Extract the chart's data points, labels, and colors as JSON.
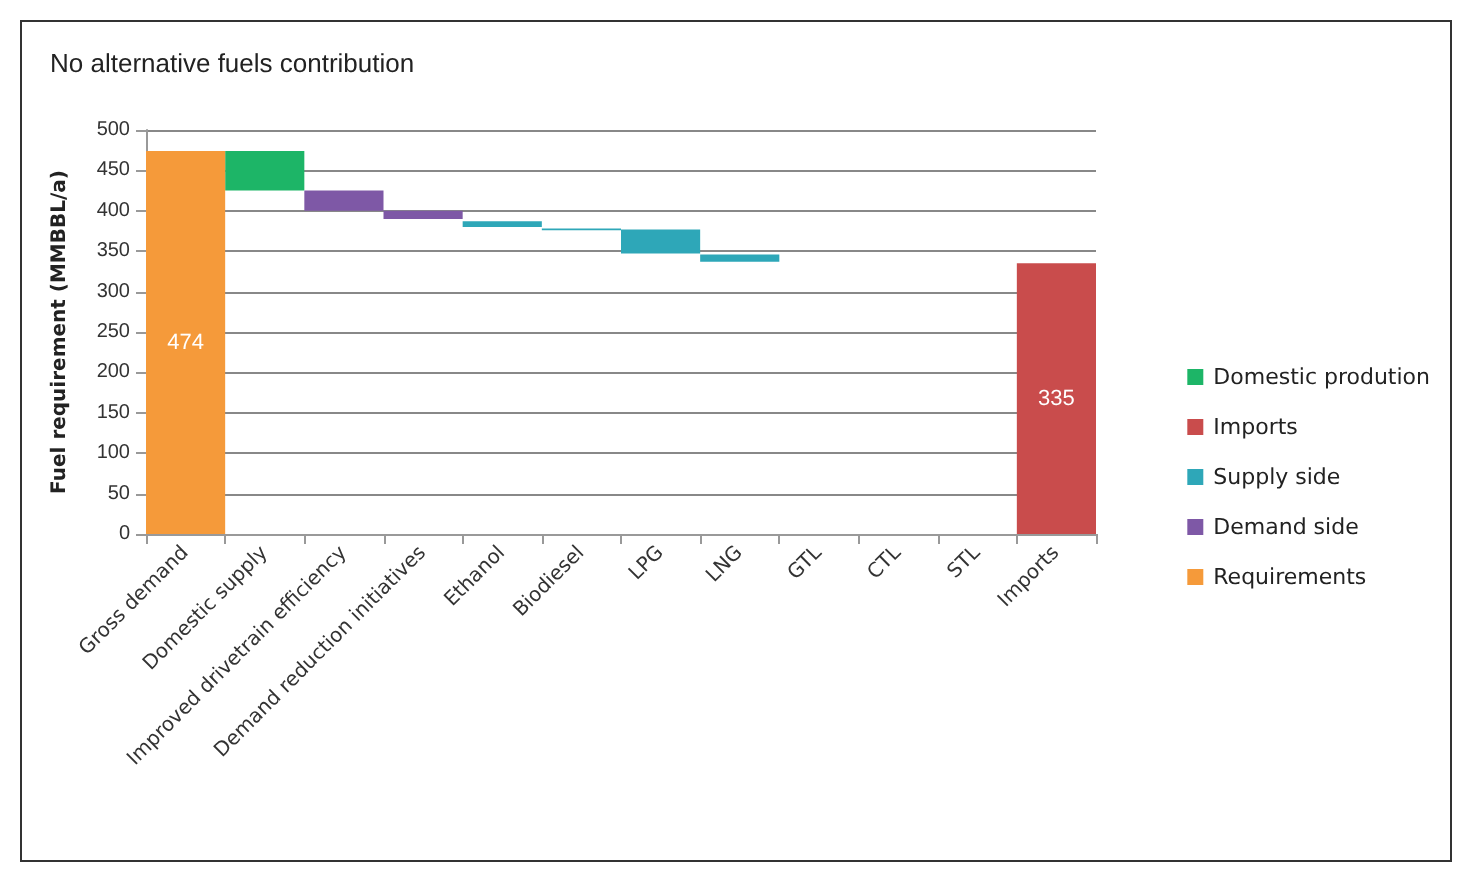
{
  "chart_data": {
    "type": "bar",
    "title": "No alternative fuels contribution",
    "ylabel": "Fuel requirement (MMBBL/a)",
    "categories": [
      "Gross demand",
      "Domestic supply",
      "Improved drivetrain efficiency",
      "Demand reduction initiatives",
      "Ethanol",
      "Biodiesel",
      "LPG",
      "LNG",
      "GTL",
      "CTL",
      "STL",
      "Imports"
    ],
    "series": [
      {
        "name": "Domestic prodution",
        "color": "#1db567",
        "values": [
          null,
          49,
          null,
          null,
          null,
          null,
          null,
          null,
          null,
          null,
          null,
          null
        ],
        "base": [
          null,
          425,
          null,
          null,
          null,
          null,
          null,
          null,
          null,
          null,
          null,
          null
        ]
      },
      {
        "name": "Imports",
        "color": "#c94c4c",
        "values": [
          null,
          null,
          null,
          null,
          null,
          null,
          null,
          null,
          null,
          null,
          null,
          335
        ],
        "base": [
          null,
          null,
          null,
          null,
          null,
          null,
          null,
          null,
          null,
          null,
          null,
          0
        ],
        "value_labels": [
          null,
          null,
          null,
          null,
          null,
          null,
          null,
          null,
          null,
          null,
          null,
          "335"
        ]
      },
      {
        "name": "Supply side",
        "color": "#2ea7b8",
        "values": [
          null,
          null,
          null,
          null,
          7,
          2,
          30,
          9,
          null,
          null,
          null,
          null
        ],
        "base": [
          null,
          null,
          null,
          null,
          380,
          376,
          347,
          337,
          null,
          null,
          null,
          null
        ]
      },
      {
        "name": "Demand side",
        "color": "#7e58a6",
        "values": [
          null,
          null,
          25,
          10,
          null,
          null,
          null,
          null,
          null,
          null,
          null,
          null
        ],
        "base": [
          null,
          null,
          400,
          390,
          null,
          null,
          null,
          null,
          null,
          null,
          null,
          null
        ]
      },
      {
        "name": "Requirements",
        "color": "#f59a3a",
        "values": [
          474,
          null,
          null,
          null,
          null,
          null,
          null,
          null,
          null,
          null,
          null,
          null
        ],
        "base": [
          0,
          null,
          null,
          null,
          null,
          null,
          null,
          null,
          null,
          null,
          null,
          null
        ],
        "value_labels": [
          "474",
          null,
          null,
          null,
          null,
          null,
          null,
          null,
          null,
          null,
          null,
          null
        ]
      }
    ],
    "ylim": [
      0,
      500
    ],
    "yticks": [
      0,
      50,
      100,
      150,
      200,
      250,
      300,
      350,
      400,
      450,
      500
    ],
    "grid": "y",
    "legend": "right"
  }
}
